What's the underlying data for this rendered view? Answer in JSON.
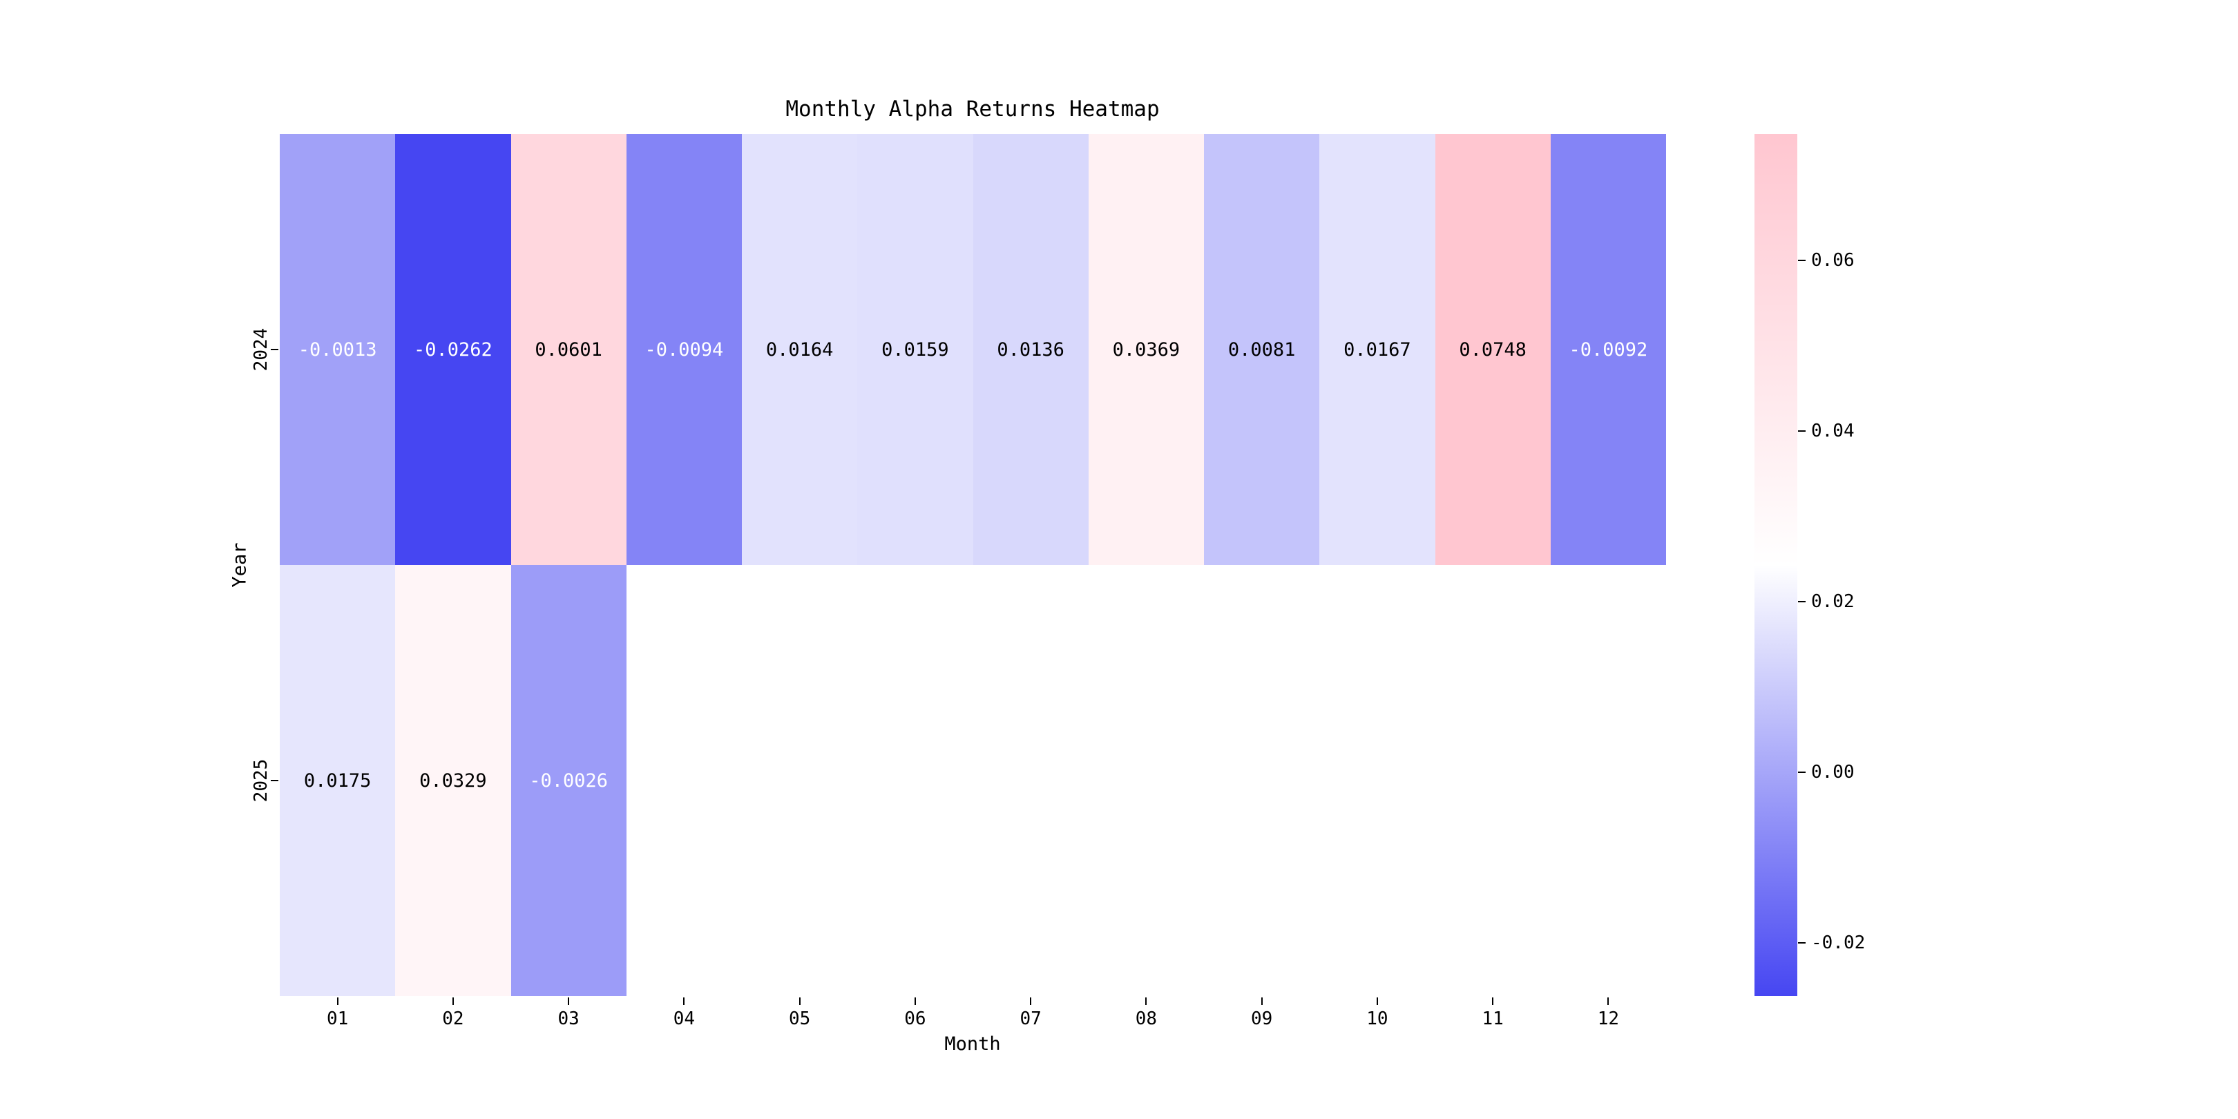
{
  "chart_data": {
    "type": "heatmap",
    "title": "Monthly Alpha Returns Heatmap",
    "xlabel": "Month",
    "ylabel": "Year",
    "x_categories": [
      "01",
      "02",
      "03",
      "04",
      "05",
      "06",
      "07",
      "08",
      "09",
      "10",
      "11",
      "12"
    ],
    "y_categories": [
      "2024",
      "2025"
    ],
    "series": [
      {
        "name": "2024",
        "values": [
          -0.0013,
          -0.0262,
          0.0601,
          -0.0094,
          0.0164,
          0.0159,
          0.0136,
          0.0369,
          0.0081,
          0.0167,
          0.0748,
          -0.0092
        ]
      },
      {
        "name": "2025",
        "values": [
          0.0175,
          0.0329,
          -0.0026,
          null,
          null,
          null,
          null,
          null,
          null,
          null,
          null,
          null
        ]
      }
    ],
    "vmin": -0.0262,
    "vmax": 0.0748,
    "value_decimals": 4,
    "grid": false,
    "legend_position": "right-colorbar",
    "colorbar_ticks": [
      {
        "value": 0.06,
        "label": "0.06"
      },
      {
        "value": 0.04,
        "label": "0.04"
      },
      {
        "value": 0.02,
        "label": "0.02"
      },
      {
        "value": 0.0,
        "label": "0.00"
      },
      {
        "value": -0.02,
        "label": "-0.02"
      }
    ],
    "colors": {
      "negative_end": "#4646f2",
      "center": "#ffffff",
      "positive_end": "#ffc6d0",
      "annotation_dark": "#000000",
      "annotation_light": "#ffffff",
      "background": "#ffffff"
    }
  }
}
